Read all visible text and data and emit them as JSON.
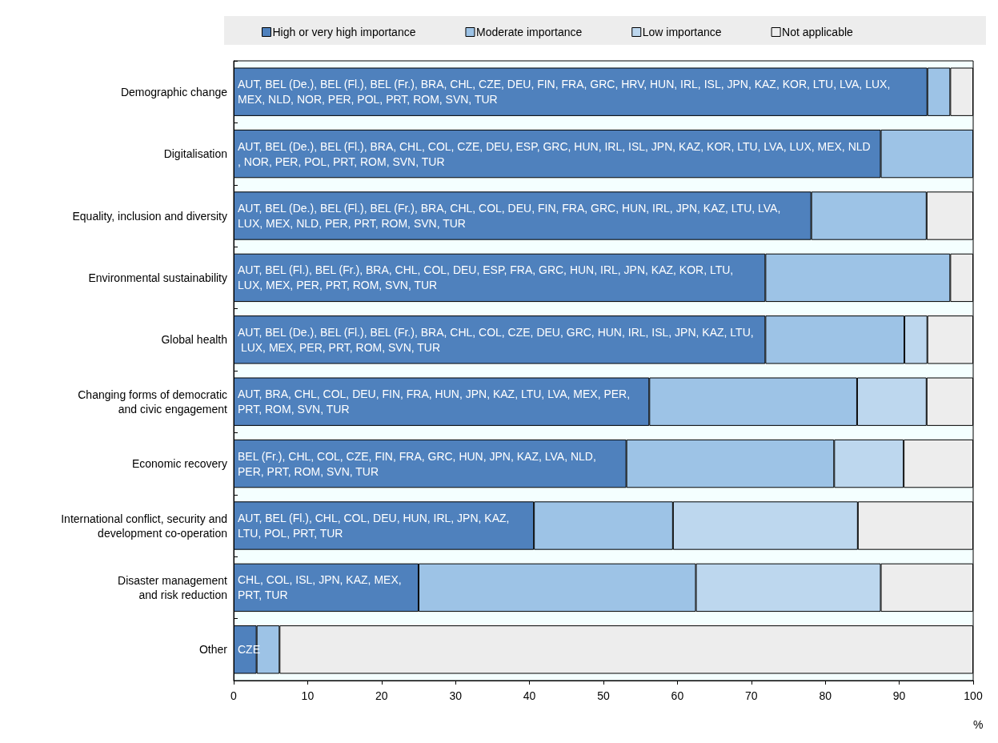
{
  "chart_data": {
    "type": "bar",
    "orientation": "horizontal",
    "stacked": true,
    "categories": [
      "Demographic change",
      "Digitalisation",
      "Equality, inclusion and diversity",
      "Environmental sustainability",
      "Global health",
      "Changing forms of democratic\nand civic engagement",
      "Economic recovery",
      "International conflict, security and\ndevelopment co-operation",
      "Disaster management\nand risk reduction",
      "Other"
    ],
    "series": [
      {
        "name": "High or very high importance",
        "color": "#4f81bd",
        "values": [
          93.8,
          87.5,
          78.1,
          71.9,
          71.9,
          56.2,
          53.1,
          40.6,
          25,
          3.1
        ],
        "value_labels": [
          "AUT, BEL (De.), BEL (Fl.), BEL (Fr.), BRA, CHL, CZE, DEU, FIN, FRA, GRC, HRV, HUN, IRL, ISL, JPN, KAZ, KOR, LTU, LVA, LUX, MEX, NLD, NOR, PER, POL, PRT, ROM, SVN, TUR",
          "AUT, BEL (De.), BEL (Fl.), BRA, CHL, COL, CZE, DEU, ESP, GRC, HUN, IRL, ISL, JPN, KAZ, KOR, LTU, LVA, LUX, MEX, NLD, NOR, PER, POL, PRT, ROM, SVN, TUR",
          "AUT, BEL (De.), BEL (Fl.), BEL (Fr.), BRA, CHL, COL, DEU, FIN, FRA, GRC, HUN, IRL, JPN, KAZ, LTU, LVA, LUX, MEX, NLD, PER, PRT, ROM, SVN, TUR",
          "AUT, BEL (Fl.), BEL (Fr.), BRA, CHL, COL, DEU, ESP, FRA, GRC, HUN, IRL, JPN, KAZ, KOR, LTU, LUX, MEX, PER, PRT, ROM, SVN, TUR",
          "AUT, BEL (De.), BEL (Fl.), BEL (Fr.), BRA, CHL, COL, CZE, DEU, GRC, HUN, IRL, ISL, JPN, KAZ, LTU, LUX, MEX, PER, PRT, ROM, SVN, TUR",
          "AUT, BRA, CHL, COL, DEU, FIN, FRA, HUN, JPN, KAZ, LTU, LVA, MEX, PER, PRT, ROM, SVN, TUR",
          "BEL (Fr.), CHL, COL, CZE, FIN, FRA, GRC, HUN, JPN, KAZ, LVA, NLD, PER, PRT, ROM, SVN, TUR",
          "AUT, BEL (Fl.), CHL, COL, DEU, HUN, IRL, JPN, KAZ, LTU, POL, PRT, TUR",
          "CHL, COL, ISL, JPN, KAZ, MEX, PRT, TUR",
          "CZE"
        ]
      },
      {
        "name": "Moderate importance",
        "color": "#9dc3e6",
        "values": [
          3.1,
          12.5,
          15.6,
          25,
          18.8,
          28.1,
          28.1,
          18.8,
          37.5,
          3.1
        ]
      },
      {
        "name": "Low importance",
        "color": "#bdd7ee",
        "values": [
          0,
          0,
          0,
          0,
          3.1,
          9.4,
          9.4,
          25,
          25,
          0
        ]
      },
      {
        "name": "Not applicable",
        "color": "#ededed",
        "values": [
          3.1,
          0,
          6.3,
          3.1,
          6.2,
          6.3,
          9.4,
          15.6,
          12.5,
          93.8
        ]
      }
    ],
    "xlim": [
      0,
      100
    ],
    "xticks": [
      0,
      10,
      20,
      30,
      40,
      50,
      60,
      70,
      80,
      90,
      100
    ],
    "xlabel": "%",
    "grid": false,
    "legend": "top"
  }
}
